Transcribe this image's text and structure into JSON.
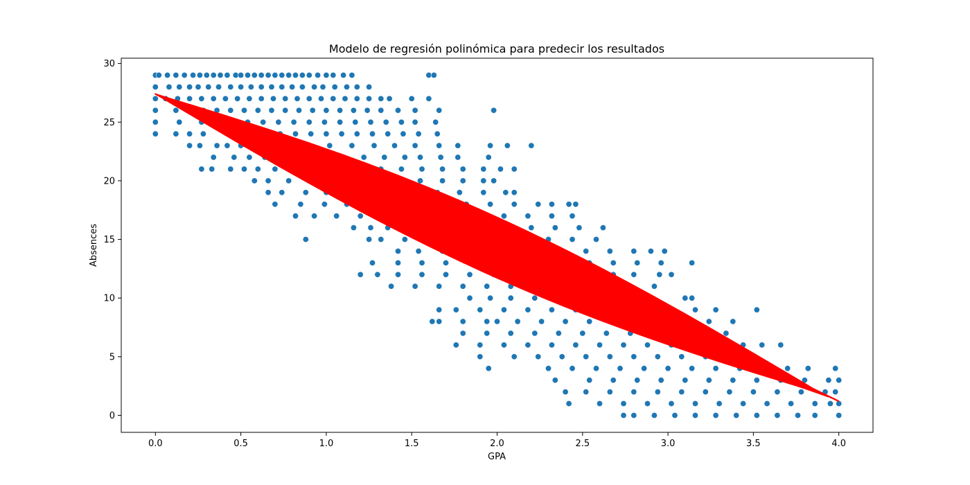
{
  "chart_data": {
    "type": "scatter",
    "title": "Modelo de regresión polinómica para predecir los resultados",
    "xlabel": "GPA",
    "ylabel": "Absences",
    "xlim": [
      -0.2,
      4.2
    ],
    "ylim": [
      -1.45,
      30.45
    ],
    "x_ticks": [
      "0.0",
      "0.5",
      "1.0",
      "1.5",
      "2.0",
      "2.5",
      "3.0",
      "3.5",
      "4.0"
    ],
    "y_ticks": [
      "0",
      "5",
      "10",
      "15",
      "20",
      "25",
      "30"
    ],
    "grid": false,
    "legend": "none",
    "scatter_color": "#1f77b4",
    "fit_color": "#ff0000",
    "scatter_points": [
      [
        0.0,
        29
      ],
      [
        0.02,
        29
      ],
      [
        0.07,
        29
      ],
      [
        0.12,
        29
      ],
      [
        0.17,
        29
      ],
      [
        0.22,
        29
      ],
      [
        0.26,
        29
      ],
      [
        0.3,
        29
      ],
      [
        0.34,
        29
      ],
      [
        0.38,
        29
      ],
      [
        0.42,
        29
      ],
      [
        0.47,
        29
      ],
      [
        0.5,
        29
      ],
      [
        0.54,
        29
      ],
      [
        0.58,
        29
      ],
      [
        0.62,
        29
      ],
      [
        0.66,
        29
      ],
      [
        0.7,
        29
      ],
      [
        0.74,
        29
      ],
      [
        0.78,
        29
      ],
      [
        0.82,
        29
      ],
      [
        0.86,
        29
      ],
      [
        0.9,
        29
      ],
      [
        0.95,
        29
      ],
      [
        1.0,
        29
      ],
      [
        1.04,
        29
      ],
      [
        1.1,
        29
      ],
      [
        1.15,
        29
      ],
      [
        1.6,
        29
      ],
      [
        1.63,
        29
      ],
      [
        0.0,
        28
      ],
      [
        0.08,
        28
      ],
      [
        0.14,
        28
      ],
      [
        0.2,
        28
      ],
      [
        0.25,
        28
      ],
      [
        0.31,
        28
      ],
      [
        0.37,
        28
      ],
      [
        0.44,
        28
      ],
      [
        0.5,
        28
      ],
      [
        0.56,
        28
      ],
      [
        0.62,
        28
      ],
      [
        0.68,
        28
      ],
      [
        0.74,
        28
      ],
      [
        0.8,
        28
      ],
      [
        0.86,
        28
      ],
      [
        0.93,
        28
      ],
      [
        0.98,
        28
      ],
      [
        1.05,
        28
      ],
      [
        1.12,
        28
      ],
      [
        1.18,
        28
      ],
      [
        1.25,
        28
      ],
      [
        0.0,
        27
      ],
      [
        0.06,
        27
      ],
      [
        0.13,
        27
      ],
      [
        0.2,
        27
      ],
      [
        0.27,
        27
      ],
      [
        0.34,
        27
      ],
      [
        0.41,
        27
      ],
      [
        0.48,
        27
      ],
      [
        0.55,
        27
      ],
      [
        0.62,
        27
      ],
      [
        0.69,
        27
      ],
      [
        0.76,
        27
      ],
      [
        0.83,
        27
      ],
      [
        0.9,
        27
      ],
      [
        0.97,
        27
      ],
      [
        1.04,
        27
      ],
      [
        1.11,
        27
      ],
      [
        1.18,
        27
      ],
      [
        1.25,
        27
      ],
      [
        1.32,
        27
      ],
      [
        1.37,
        27
      ],
      [
        1.5,
        27
      ],
      [
        1.6,
        27
      ],
      [
        0.0,
        26
      ],
      [
        0.12,
        26
      ],
      [
        0.2,
        26
      ],
      [
        0.28,
        26
      ],
      [
        0.36,
        26
      ],
      [
        0.44,
        26
      ],
      [
        0.52,
        26
      ],
      [
        0.6,
        26
      ],
      [
        0.68,
        26
      ],
      [
        0.76,
        26
      ],
      [
        0.84,
        26
      ],
      [
        0.92,
        26
      ],
      [
        1.0,
        26
      ],
      [
        1.08,
        26
      ],
      [
        1.16,
        26
      ],
      [
        1.24,
        26
      ],
      [
        1.32,
        26
      ],
      [
        1.42,
        26
      ],
      [
        1.52,
        26
      ],
      [
        1.66,
        26
      ],
      [
        1.98,
        26
      ],
      [
        0.0,
        25
      ],
      [
        0.14,
        25
      ],
      [
        0.27,
        25
      ],
      [
        0.36,
        25
      ],
      [
        0.45,
        25
      ],
      [
        0.54,
        25
      ],
      [
        0.63,
        25
      ],
      [
        0.72,
        25
      ],
      [
        0.81,
        25
      ],
      [
        0.9,
        25
      ],
      [
        0.99,
        25
      ],
      [
        1.08,
        25
      ],
      [
        1.17,
        25
      ],
      [
        1.26,
        25
      ],
      [
        1.35,
        25
      ],
      [
        1.44,
        25
      ],
      [
        1.52,
        25
      ],
      [
        1.64,
        25
      ],
      [
        0.0,
        24
      ],
      [
        0.12,
        24
      ],
      [
        0.2,
        24
      ],
      [
        0.28,
        24
      ],
      [
        0.55,
        24
      ],
      [
        0.64,
        24
      ],
      [
        0.73,
        24
      ],
      [
        0.82,
        24
      ],
      [
        0.91,
        24
      ],
      [
        1.0,
        24
      ],
      [
        1.09,
        24
      ],
      [
        1.18,
        24
      ],
      [
        1.27,
        24
      ],
      [
        1.36,
        24
      ],
      [
        1.45,
        24
      ],
      [
        1.54,
        24
      ],
      [
        1.65,
        24
      ],
      [
        0.2,
        23
      ],
      [
        0.26,
        23
      ],
      [
        0.36,
        23
      ],
      [
        0.42,
        23
      ],
      [
        0.5,
        23
      ],
      [
        0.63,
        23
      ],
      [
        0.76,
        23
      ],
      [
        0.9,
        23
      ],
      [
        1.02,
        23
      ],
      [
        1.15,
        23
      ],
      [
        1.28,
        23
      ],
      [
        1.4,
        23
      ],
      [
        1.52,
        23
      ],
      [
        1.66,
        23
      ],
      [
        1.77,
        23
      ],
      [
        1.96,
        23
      ],
      [
        2.06,
        23
      ],
      [
        2.2,
        23
      ],
      [
        0.34,
        22
      ],
      [
        0.46,
        22
      ],
      [
        0.55,
        22
      ],
      [
        0.64,
        22
      ],
      [
        0.73,
        22
      ],
      [
        0.85,
        22
      ],
      [
        0.97,
        22
      ],
      [
        1.1,
        22
      ],
      [
        1.22,
        22
      ],
      [
        1.34,
        22
      ],
      [
        1.46,
        22
      ],
      [
        1.55,
        22
      ],
      [
        1.67,
        22
      ],
      [
        1.77,
        22
      ],
      [
        1.95,
        22
      ],
      [
        0.27,
        21
      ],
      [
        0.33,
        21
      ],
      [
        0.44,
        21
      ],
      [
        0.52,
        21
      ],
      [
        0.6,
        21
      ],
      [
        0.7,
        21
      ],
      [
        0.82,
        21
      ],
      [
        0.95,
        21
      ],
      [
        1.08,
        21
      ],
      [
        1.2,
        21
      ],
      [
        1.32,
        21
      ],
      [
        1.44,
        21
      ],
      [
        1.56,
        21
      ],
      [
        1.68,
        21
      ],
      [
        1.8,
        21
      ],
      [
        1.92,
        21
      ],
      [
        2.02,
        21
      ],
      [
        2.1,
        21
      ],
      [
        0.58,
        20
      ],
      [
        0.66,
        20
      ],
      [
        0.78,
        20
      ],
      [
        0.9,
        20
      ],
      [
        1.02,
        20
      ],
      [
        1.15,
        20
      ],
      [
        1.28,
        20
      ],
      [
        1.42,
        20
      ],
      [
        1.55,
        20
      ],
      [
        1.68,
        20
      ],
      [
        1.8,
        20
      ],
      [
        1.92,
        20
      ],
      [
        1.98,
        20
      ],
      [
        0.66,
        19
      ],
      [
        0.74,
        19
      ],
      [
        0.88,
        19
      ],
      [
        1.0,
        19
      ],
      [
        1.12,
        19
      ],
      [
        1.25,
        19
      ],
      [
        1.38,
        19
      ],
      [
        1.52,
        19
      ],
      [
        1.65,
        19
      ],
      [
        1.78,
        19
      ],
      [
        1.92,
        19
      ],
      [
        2.05,
        19
      ],
      [
        2.1,
        19
      ],
      [
        0.7,
        18
      ],
      [
        0.85,
        18
      ],
      [
        0.99,
        18
      ],
      [
        1.12,
        18
      ],
      [
        1.26,
        18
      ],
      [
        1.4,
        18
      ],
      [
        1.54,
        18
      ],
      [
        1.68,
        18
      ],
      [
        1.82,
        18
      ],
      [
        1.96,
        18
      ],
      [
        2.1,
        18
      ],
      [
        2.24,
        18
      ],
      [
        2.32,
        18
      ],
      [
        2.42,
        18
      ],
      [
        2.46,
        18
      ],
      [
        0.82,
        17
      ],
      [
        0.93,
        17
      ],
      [
        1.06,
        17
      ],
      [
        1.2,
        17
      ],
      [
        1.34,
        17
      ],
      [
        1.48,
        17
      ],
      [
        1.62,
        17
      ],
      [
        1.76,
        17
      ],
      [
        1.9,
        17
      ],
      [
        2.04,
        17
      ],
      [
        2.18,
        17
      ],
      [
        2.32,
        17
      ],
      [
        2.44,
        17
      ],
      [
        1.16,
        16
      ],
      [
        1.26,
        16
      ],
      [
        1.36,
        16
      ],
      [
        1.5,
        16
      ],
      [
        1.64,
        16
      ],
      [
        1.78,
        16
      ],
      [
        1.92,
        16
      ],
      [
        2.06,
        16
      ],
      [
        2.2,
        16
      ],
      [
        2.34,
        16
      ],
      [
        2.48,
        16
      ],
      [
        2.62,
        16
      ],
      [
        0.88,
        15
      ],
      [
        1.25,
        15
      ],
      [
        1.32,
        15
      ],
      [
        1.46,
        15
      ],
      [
        1.6,
        15
      ],
      [
        1.74,
        15
      ],
      [
        1.88,
        15
      ],
      [
        2.02,
        15
      ],
      [
        2.16,
        15
      ],
      [
        2.3,
        15
      ],
      [
        2.44,
        15
      ],
      [
        2.58,
        15
      ],
      [
        1.42,
        14
      ],
      [
        1.54,
        14
      ],
      [
        1.68,
        14
      ],
      [
        1.82,
        14
      ],
      [
        1.96,
        14
      ],
      [
        2.1,
        14
      ],
      [
        2.24,
        14
      ],
      [
        2.38,
        14
      ],
      [
        2.52,
        14
      ],
      [
        2.66,
        14
      ],
      [
        2.8,
        14
      ],
      [
        2.9,
        14
      ],
      [
        2.98,
        14
      ],
      [
        1.27,
        13
      ],
      [
        1.42,
        13
      ],
      [
        1.56,
        13
      ],
      [
        1.7,
        13
      ],
      [
        1.84,
        13
      ],
      [
        1.98,
        13
      ],
      [
        2.12,
        13
      ],
      [
        2.26,
        13
      ],
      [
        2.4,
        13
      ],
      [
        2.54,
        13
      ],
      [
        2.68,
        13
      ],
      [
        2.82,
        13
      ],
      [
        2.96,
        13
      ],
      [
        3.14,
        13
      ],
      [
        1.2,
        12
      ],
      [
        1.3,
        12
      ],
      [
        1.42,
        12
      ],
      [
        1.56,
        12
      ],
      [
        1.7,
        12
      ],
      [
        1.84,
        12
      ],
      [
        1.98,
        12
      ],
      [
        2.12,
        12
      ],
      [
        2.26,
        12
      ],
      [
        2.4,
        12
      ],
      [
        2.54,
        12
      ],
      [
        2.68,
        12
      ],
      [
        2.8,
        12
      ],
      [
        2.95,
        12
      ],
      [
        3.02,
        12
      ],
      [
        1.38,
        11
      ],
      [
        1.52,
        11
      ],
      [
        1.66,
        11
      ],
      [
        1.8,
        11
      ],
      [
        1.94,
        11
      ],
      [
        2.08,
        11
      ],
      [
        2.22,
        11
      ],
      [
        2.36,
        11
      ],
      [
        2.5,
        11
      ],
      [
        2.64,
        11
      ],
      [
        2.78,
        11
      ],
      [
        2.92,
        11
      ],
      [
        1.84,
        10
      ],
      [
        1.96,
        10
      ],
      [
        2.08,
        10
      ],
      [
        2.22,
        10
      ],
      [
        2.36,
        10
      ],
      [
        2.5,
        10
      ],
      [
        2.64,
        10
      ],
      [
        2.78,
        10
      ],
      [
        2.9,
        10
      ],
      [
        3.1,
        10
      ],
      [
        3.14,
        10
      ],
      [
        1.66,
        9
      ],
      [
        1.76,
        9
      ],
      [
        1.9,
        9
      ],
      [
        2.04,
        9
      ],
      [
        2.18,
        9
      ],
      [
        2.32,
        9
      ],
      [
        2.46,
        9
      ],
      [
        2.6,
        9
      ],
      [
        2.74,
        9
      ],
      [
        2.88,
        9
      ],
      [
        3.02,
        9
      ],
      [
        3.16,
        9
      ],
      [
        3.28,
        9
      ],
      [
        3.52,
        9
      ],
      [
        1.62,
        8
      ],
      [
        1.66,
        8
      ],
      [
        1.8,
        8
      ],
      [
        1.94,
        8
      ],
      [
        2.0,
        8
      ],
      [
        2.12,
        8
      ],
      [
        2.26,
        8
      ],
      [
        2.4,
        8
      ],
      [
        2.54,
        8
      ],
      [
        2.68,
        8
      ],
      [
        2.82,
        8
      ],
      [
        2.96,
        8
      ],
      [
        3.1,
        8
      ],
      [
        3.24,
        8
      ],
      [
        3.38,
        8
      ],
      [
        1.8,
        7
      ],
      [
        1.94,
        7
      ],
      [
        2.08,
        7
      ],
      [
        2.22,
        7
      ],
      [
        2.36,
        7
      ],
      [
        2.5,
        7
      ],
      [
        2.64,
        7
      ],
      [
        2.78,
        7
      ],
      [
        2.92,
        7
      ],
      [
        3.06,
        7
      ],
      [
        3.2,
        7
      ],
      [
        3.34,
        7
      ],
      [
        1.76,
        6
      ],
      [
        1.9,
        6
      ],
      [
        2.04,
        6
      ],
      [
        2.18,
        6
      ],
      [
        2.32,
        6
      ],
      [
        2.46,
        6
      ],
      [
        2.6,
        6
      ],
      [
        2.74,
        6
      ],
      [
        2.88,
        6
      ],
      [
        3.02,
        6
      ],
      [
        3.16,
        6
      ],
      [
        3.3,
        6
      ],
      [
        3.44,
        6
      ],
      [
        3.55,
        6
      ],
      [
        3.66,
        6
      ],
      [
        1.9,
        5
      ],
      [
        2.1,
        5
      ],
      [
        2.24,
        5
      ],
      [
        2.38,
        5
      ],
      [
        2.52,
        5
      ],
      [
        2.66,
        5
      ],
      [
        2.8,
        5
      ],
      [
        2.94,
        5
      ],
      [
        3.08,
        5
      ],
      [
        3.22,
        5
      ],
      [
        3.36,
        5
      ],
      [
        3.5,
        5
      ],
      [
        1.95,
        4
      ],
      [
        2.3,
        4
      ],
      [
        2.44,
        4
      ],
      [
        2.58,
        4
      ],
      [
        2.72,
        4
      ],
      [
        2.86,
        4
      ],
      [
        3.0,
        4
      ],
      [
        3.14,
        4
      ],
      [
        3.28,
        4
      ],
      [
        3.42,
        4
      ],
      [
        3.56,
        4
      ],
      [
        3.7,
        4
      ],
      [
        3.82,
        4
      ],
      [
        3.98,
        4
      ],
      [
        2.34,
        3
      ],
      [
        2.54,
        3
      ],
      [
        2.68,
        3
      ],
      [
        2.82,
        3
      ],
      [
        2.96,
        3
      ],
      [
        3.1,
        3
      ],
      [
        3.24,
        3
      ],
      [
        3.38,
        3
      ],
      [
        3.52,
        3
      ],
      [
        3.66,
        3
      ],
      [
        3.8,
        3
      ],
      [
        3.94,
        3
      ],
      [
        4.0,
        3
      ],
      [
        2.4,
        2
      ],
      [
        2.52,
        2
      ],
      [
        2.66,
        2
      ],
      [
        2.8,
        2
      ],
      [
        2.94,
        2
      ],
      [
        3.08,
        2
      ],
      [
        3.22,
        2
      ],
      [
        3.36,
        2
      ],
      [
        3.5,
        2
      ],
      [
        3.64,
        2
      ],
      [
        3.78,
        2
      ],
      [
        3.92,
        2
      ],
      [
        3.98,
        2
      ],
      [
        2.42,
        1
      ],
      [
        2.6,
        1
      ],
      [
        2.74,
        1
      ],
      [
        2.88,
        1
      ],
      [
        3.02,
        1
      ],
      [
        3.16,
        1
      ],
      [
        3.3,
        1
      ],
      [
        3.44,
        1
      ],
      [
        3.58,
        1
      ],
      [
        3.72,
        1
      ],
      [
        3.86,
        1
      ],
      [
        3.95,
        1
      ],
      [
        4.0,
        1
      ],
      [
        2.74,
        0
      ],
      [
        2.8,
        0
      ],
      [
        2.92,
        0
      ],
      [
        3.04,
        0
      ],
      [
        3.16,
        0
      ],
      [
        3.28,
        0
      ],
      [
        3.4,
        0
      ],
      [
        3.52,
        0
      ],
      [
        3.64,
        0
      ],
      [
        3.76,
        0
      ],
      [
        3.86,
        0
      ],
      [
        4.0,
        0
      ]
    ],
    "fit_curve_start": [
      0.0,
      27.4
    ],
    "fit_curve_end": [
      4.0,
      1.2
    ]
  }
}
